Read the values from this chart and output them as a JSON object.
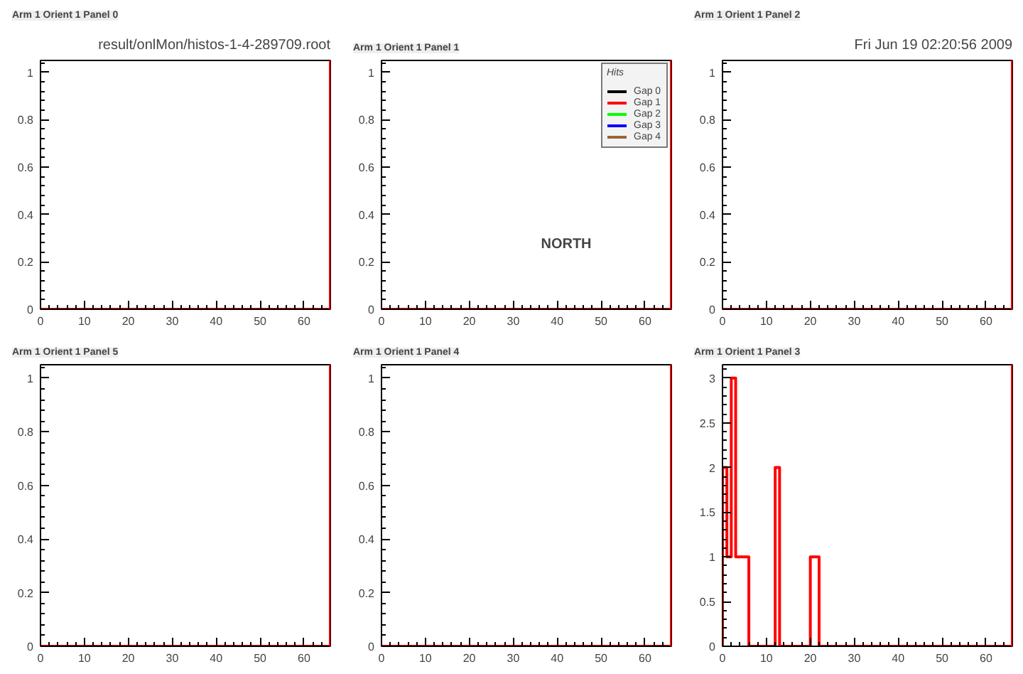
{
  "chart_data": [
    {
      "type": "histogram",
      "title": "Arm 1 Orient 1 Panel 0",
      "annotations": [
        "result/onlMon/histos-1-4-289709.root"
      ],
      "bins": [
        0,
        1,
        2,
        3,
        4,
        5,
        6,
        7,
        8,
        9,
        10,
        11,
        12,
        13,
        14,
        15,
        16,
        17,
        18,
        19,
        20,
        21,
        22,
        23,
        24,
        25,
        26,
        27,
        28,
        29,
        30,
        31,
        32,
        33,
        34,
        35,
        36,
        37,
        38,
        39,
        40,
        41,
        42,
        43,
        44,
        45,
        46,
        47,
        48,
        49,
        50,
        51,
        52,
        53,
        54,
        55,
        56,
        57,
        58,
        59,
        60,
        61,
        62,
        63,
        64,
        65,
        66
      ],
      "series": [
        {
          "color": "#ff0000",
          "values": [
            0,
            0,
            0,
            0,
            0,
            0,
            0,
            0,
            0,
            0,
            0,
            0,
            0,
            0,
            0,
            0,
            0,
            0,
            0,
            0,
            0,
            0,
            0,
            0,
            0,
            0,
            0,
            0,
            0,
            0,
            0,
            0,
            0,
            0,
            0,
            0,
            0,
            0,
            0,
            0,
            0,
            0,
            0,
            0,
            0,
            0,
            0,
            0,
            0,
            0,
            0,
            0,
            0,
            0,
            0,
            0,
            0,
            0,
            0,
            0,
            0,
            0,
            0,
            0,
            0,
            0
          ]
        }
      ],
      "xlim": [
        0,
        66
      ],
      "ylim": [
        0,
        1.05
      ],
      "xticks": [
        0,
        10,
        20,
        30,
        40,
        50,
        60
      ],
      "yticks": [
        0,
        0.2,
        0.4,
        0.6,
        0.8,
        1
      ],
      "ref_lines": [
        {
          "axis": "x",
          "value": 66,
          "color": "#ff0000"
        }
      ]
    },
    {
      "type": "histogram",
      "title": "Arm 1 Orient 1 Panel 1",
      "annotations": [
        "NORTH"
      ],
      "legend_title": "Hits",
      "legend": "top right",
      "bins": [
        0,
        1,
        2,
        3,
        4,
        5,
        6,
        7,
        8,
        9,
        10,
        11,
        12,
        13,
        14,
        15,
        16,
        17,
        18,
        19,
        20,
        21,
        22,
        23,
        24,
        25,
        26,
        27,
        28,
        29,
        30,
        31,
        32,
        33,
        34,
        35,
        36,
        37,
        38,
        39,
        40,
        41,
        42,
        43,
        44,
        45,
        46,
        47,
        48,
        49,
        50,
        51,
        52,
        53,
        54,
        55,
        56,
        57,
        58,
        59,
        60,
        61,
        62,
        63,
        64,
        65,
        66
      ],
      "series": [
        {
          "name": "Gap 0",
          "color": "#000000",
          "type": "line"
        },
        {
          "name": "Gap 1",
          "color": "#ff0000",
          "values": [
            0,
            0,
            0,
            0,
            0,
            0,
            0,
            0,
            0,
            0,
            0,
            0,
            0,
            0,
            0,
            0,
            0,
            0,
            0,
            0,
            0,
            0,
            0,
            0,
            0,
            0,
            0,
            0,
            0,
            0,
            0,
            0,
            0,
            0,
            0,
            0,
            0,
            0,
            0,
            0,
            0,
            0,
            0,
            0,
            0,
            0,
            0,
            0,
            0,
            0,
            0,
            0,
            0,
            0,
            0,
            0,
            0,
            0,
            0,
            0,
            0,
            0,
            0,
            0,
            0,
            0
          ]
        },
        {
          "name": "Gap 2",
          "color": "#00ff00",
          "type": "line"
        },
        {
          "name": "Gap 3",
          "color": "#0000ff",
          "type": "line"
        },
        {
          "name": "Gap 4",
          "color": "#996633",
          "type": "line"
        }
      ],
      "xlim": [
        0,
        66
      ],
      "ylim": [
        0,
        1.05
      ],
      "xticks": [
        0,
        10,
        20,
        30,
        40,
        50,
        60
      ],
      "yticks": [
        0,
        0.2,
        0.4,
        0.6,
        0.8,
        1
      ],
      "ref_lines": [
        {
          "axis": "x",
          "value": 66,
          "color": "#ff0000"
        }
      ]
    },
    {
      "type": "histogram",
      "title": "Arm 1 Orient 1 Panel 2",
      "annotations": [
        "Fri Jun 19 02:20:56 2009"
      ],
      "bins": [
        0,
        1,
        2,
        3,
        4,
        5,
        6,
        7,
        8,
        9,
        10,
        11,
        12,
        13,
        14,
        15,
        16,
        17,
        18,
        19,
        20,
        21,
        22,
        23,
        24,
        25,
        26,
        27,
        28,
        29,
        30,
        31,
        32,
        33,
        34,
        35,
        36,
        37,
        38,
        39,
        40,
        41,
        42,
        43,
        44,
        45,
        46,
        47,
        48,
        49,
        50,
        51,
        52,
        53,
        54,
        55,
        56,
        57,
        58,
        59,
        60,
        61,
        62,
        63,
        64,
        65,
        66
      ],
      "series": [
        {
          "color": "#ff0000",
          "values": [
            0,
            0,
            0,
            0,
            0,
            0,
            0,
            0,
            0,
            0,
            0,
            0,
            0,
            0,
            0,
            0,
            0,
            0,
            0,
            0,
            0,
            0,
            0,
            0,
            0,
            0,
            0,
            0,
            0,
            0,
            0,
            0,
            0,
            0,
            0,
            0,
            0,
            0,
            0,
            0,
            0,
            0,
            0,
            0,
            0,
            0,
            0,
            0,
            0,
            0,
            0,
            0,
            0,
            0,
            0,
            0,
            0,
            0,
            0,
            0,
            0,
            0,
            0,
            0,
            0,
            0
          ]
        }
      ],
      "xlim": [
        0,
        66
      ],
      "ylim": [
        0,
        1.05
      ],
      "xticks": [
        0,
        10,
        20,
        30,
        40,
        50,
        60
      ],
      "yticks": [
        0,
        0.2,
        0.4,
        0.6,
        0.8,
        1
      ],
      "ref_lines": [
        {
          "axis": "x",
          "value": 66,
          "color": "#ff0000"
        }
      ]
    },
    {
      "type": "histogram",
      "title": "Arm 1 Orient 1 Panel 5",
      "bins": [
        0,
        1,
        2,
        3,
        4,
        5,
        6,
        7,
        8,
        9,
        10,
        11,
        12,
        13,
        14,
        15,
        16,
        17,
        18,
        19,
        20,
        21,
        22,
        23,
        24,
        25,
        26,
        27,
        28,
        29,
        30,
        31,
        32,
        33,
        34,
        35,
        36,
        37,
        38,
        39,
        40,
        41,
        42,
        43,
        44,
        45,
        46,
        47,
        48,
        49,
        50,
        51,
        52,
        53,
        54,
        55,
        56,
        57,
        58,
        59,
        60,
        61,
        62,
        63,
        64,
        65,
        66
      ],
      "series": [
        {
          "color": "#ff0000",
          "values": [
            0,
            0,
            0,
            0,
            0,
            0,
            0,
            0,
            0,
            0,
            0,
            0,
            0,
            0,
            0,
            0,
            0,
            0,
            0,
            0,
            0,
            0,
            0,
            0,
            0,
            0,
            0,
            0,
            0,
            0,
            0,
            0,
            0,
            0,
            0,
            0,
            0,
            0,
            0,
            0,
            0,
            0,
            0,
            0,
            0,
            0,
            0,
            0,
            0,
            0,
            0,
            0,
            0,
            0,
            0,
            0,
            0,
            0,
            0,
            0,
            0,
            0,
            0,
            0,
            0,
            0
          ]
        }
      ],
      "xlim": [
        0,
        66
      ],
      "ylim": [
        0,
        1.05
      ],
      "xticks": [
        0,
        10,
        20,
        30,
        40,
        50,
        60
      ],
      "yticks": [
        0,
        0.2,
        0.4,
        0.6,
        0.8,
        1
      ],
      "ref_lines": [
        {
          "axis": "x",
          "value": 66,
          "color": "#ff0000"
        }
      ]
    },
    {
      "type": "histogram",
      "title": "Arm 1 Orient 1 Panel 4",
      "bins": [
        0,
        1,
        2,
        3,
        4,
        5,
        6,
        7,
        8,
        9,
        10,
        11,
        12,
        13,
        14,
        15,
        16,
        17,
        18,
        19,
        20,
        21,
        22,
        23,
        24,
        25,
        26,
        27,
        28,
        29,
        30,
        31,
        32,
        33,
        34,
        35,
        36,
        37,
        38,
        39,
        40,
        41,
        42,
        43,
        44,
        45,
        46,
        47,
        48,
        49,
        50,
        51,
        52,
        53,
        54,
        55,
        56,
        57,
        58,
        59,
        60,
        61,
        62,
        63,
        64,
        65,
        66
      ],
      "series": [
        {
          "color": "#ff0000",
          "values": [
            0,
            0,
            0,
            0,
            0,
            0,
            0,
            0,
            0,
            0,
            0,
            0,
            0,
            0,
            0,
            0,
            0,
            0,
            0,
            0,
            0,
            0,
            0,
            0,
            0,
            0,
            0,
            0,
            0,
            0,
            0,
            0,
            0,
            0,
            0,
            0,
            0,
            0,
            0,
            0,
            0,
            0,
            0,
            0,
            0,
            0,
            0,
            0,
            0,
            0,
            0,
            0,
            0,
            0,
            0,
            0,
            0,
            0,
            0,
            0,
            0,
            0,
            0,
            0,
            0,
            0
          ]
        }
      ],
      "xlim": [
        0,
        66
      ],
      "ylim": [
        0,
        1.05
      ],
      "xticks": [
        0,
        10,
        20,
        30,
        40,
        50,
        60
      ],
      "yticks": [
        0,
        0.2,
        0.4,
        0.6,
        0.8,
        1
      ],
      "ref_lines": [
        {
          "axis": "x",
          "value": 66,
          "color": "#ff0000"
        }
      ]
    },
    {
      "type": "histogram",
      "title": "Arm 1 Orient 1 Panel 3",
      "bins": [
        0,
        1,
        2,
        3,
        4,
        5,
        6,
        7,
        8,
        9,
        10,
        11,
        12,
        13,
        14,
        15,
        16,
        17,
        18,
        19,
        20,
        21,
        22,
        23,
        24,
        25,
        26,
        27,
        28,
        29,
        30,
        31,
        32,
        33,
        34,
        35,
        36,
        37,
        38,
        39,
        40,
        41,
        42,
        43,
        44,
        45,
        46,
        47,
        48,
        49,
        50,
        51,
        52,
        53,
        54,
        55,
        56,
        57,
        58,
        59,
        60,
        61,
        62,
        63,
        64,
        65,
        66
      ],
      "series": [
        {
          "color": "#ff0000",
          "values": [
            2,
            1,
            3,
            1,
            1,
            1,
            0,
            0,
            0,
            0,
            0,
            0,
            2,
            0,
            0,
            0,
            0,
            0,
            0,
            0,
            1,
            1,
            0,
            0,
            0,
            0,
            0,
            0,
            0,
            0,
            0,
            0,
            0,
            0,
            0,
            0,
            0,
            0,
            0,
            0,
            0,
            0,
            0,
            0,
            0,
            0,
            0,
            0,
            0,
            0,
            0,
            0,
            0,
            0,
            0,
            0,
            0,
            0,
            0,
            0,
            0,
            0,
            0,
            0,
            0,
            0
          ]
        }
      ],
      "xlim": [
        0,
        66
      ],
      "ylim": [
        0,
        3.15
      ],
      "xticks": [
        0,
        10,
        20,
        30,
        40,
        50,
        60
      ],
      "yticks": [
        0,
        0.5,
        1,
        1.5,
        2,
        2.5,
        3
      ],
      "ref_lines": [
        {
          "axis": "x",
          "value": 66,
          "color": "#ff0000"
        }
      ]
    }
  ]
}
